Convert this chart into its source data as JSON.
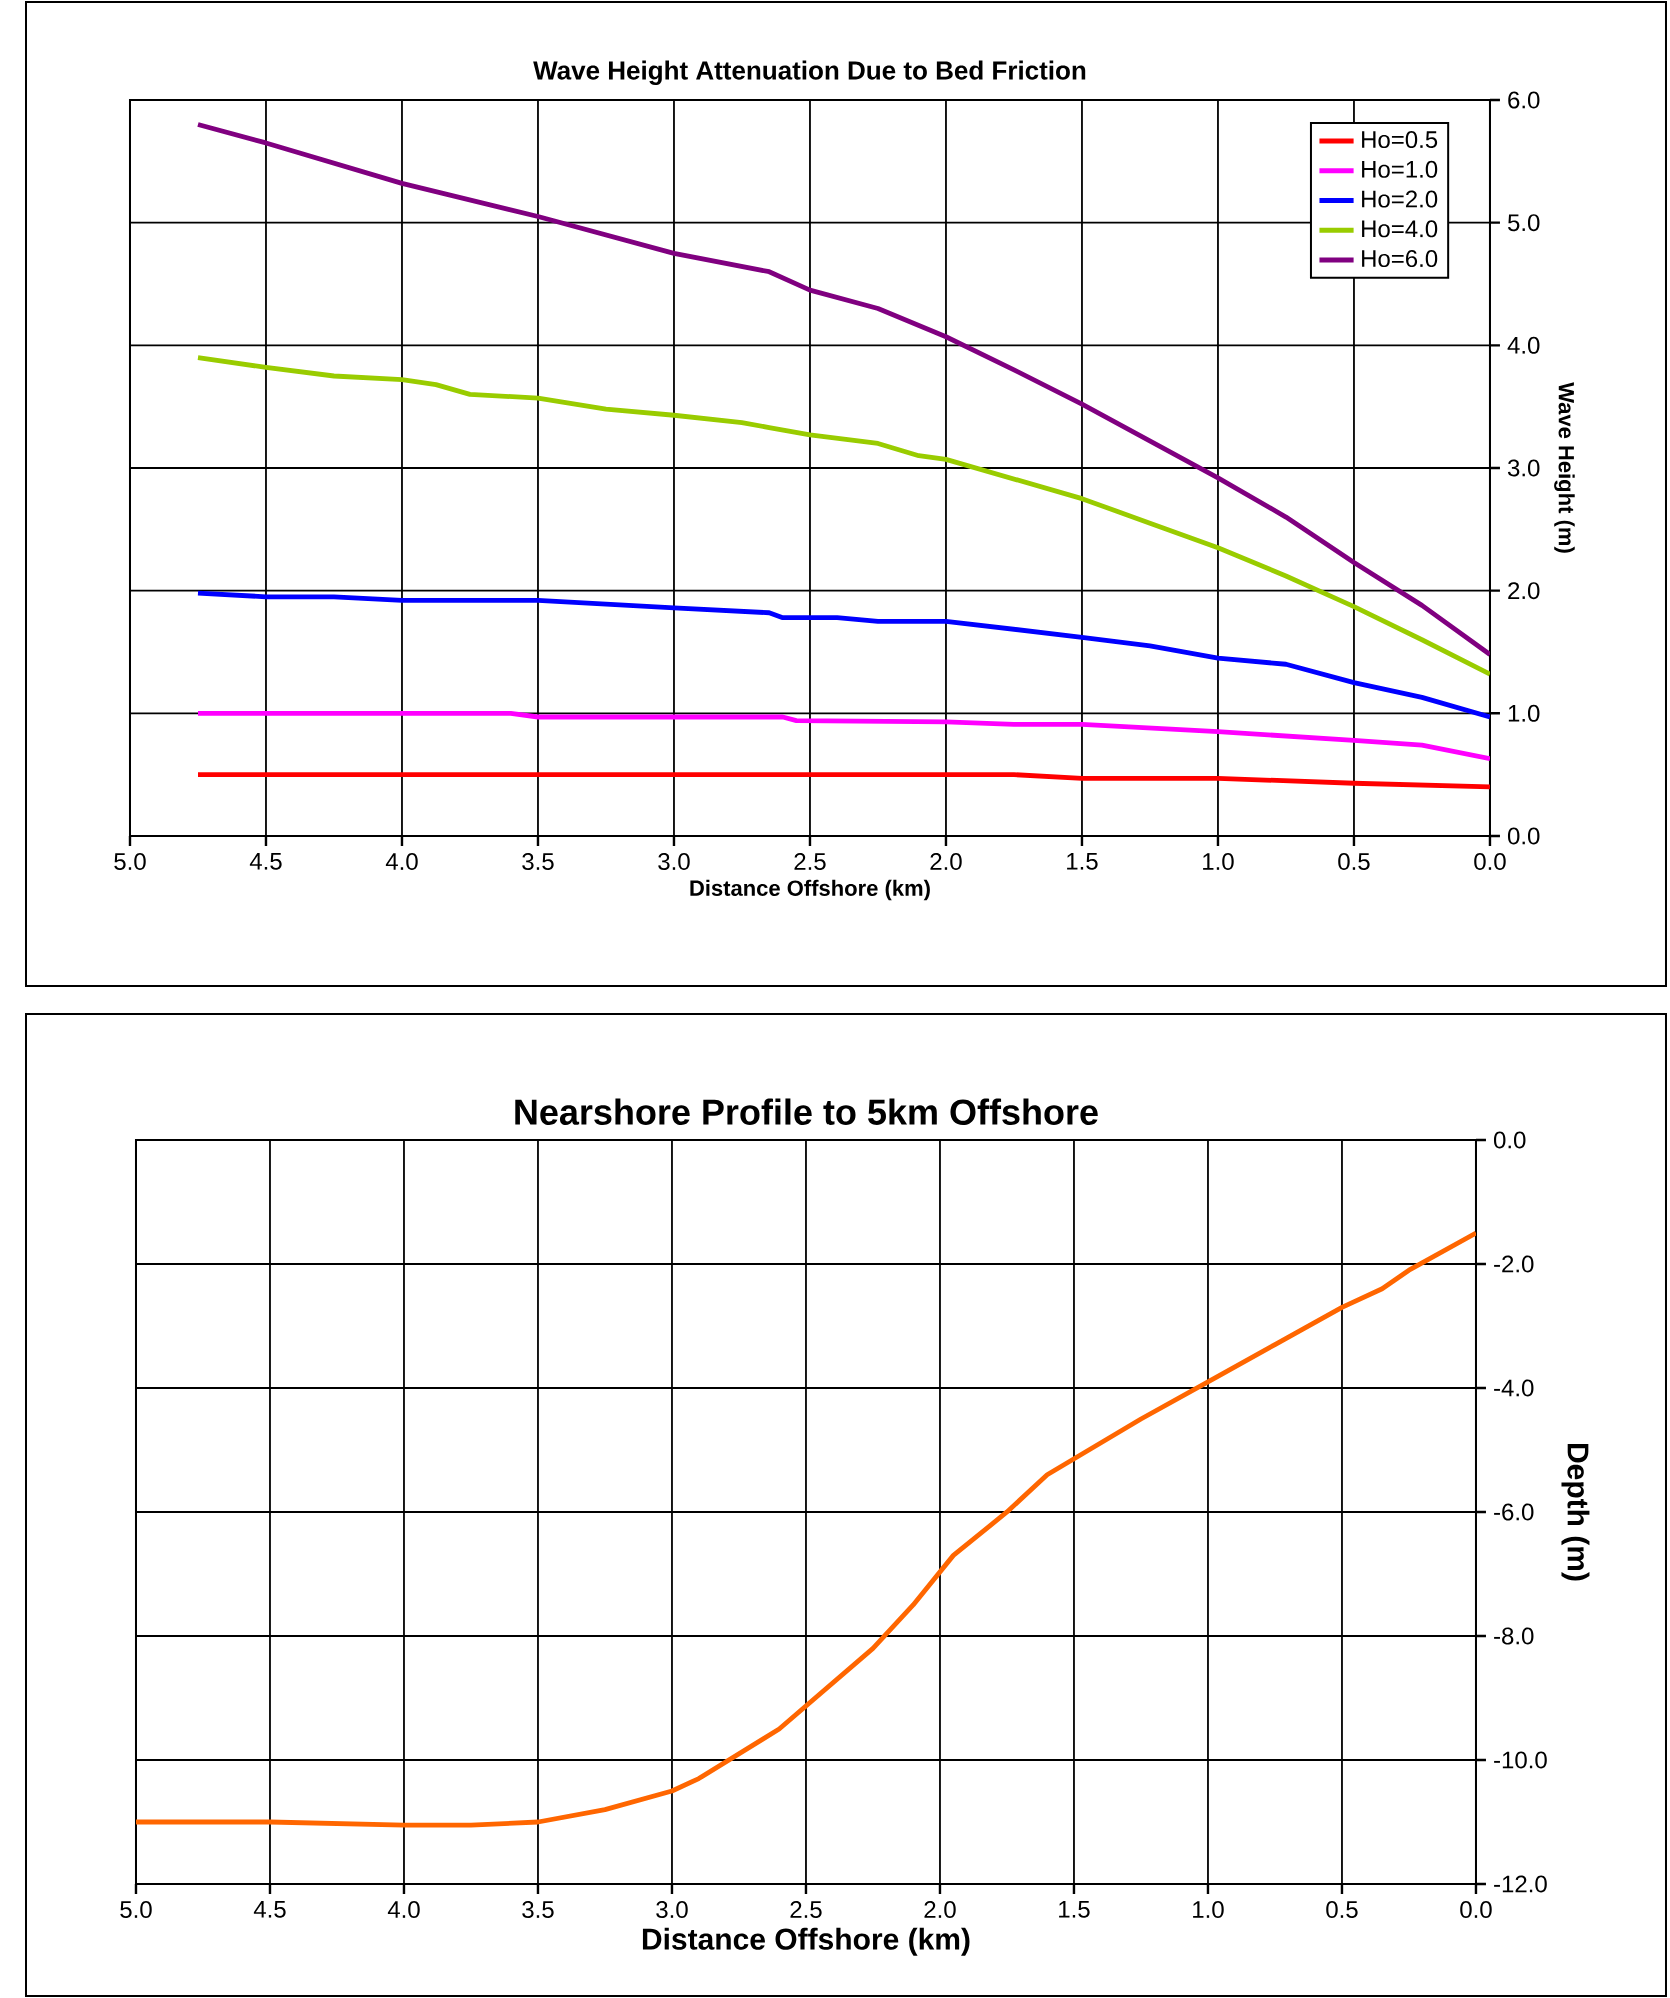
{
  "chart_data": [
    {
      "type": "line",
      "title": "Wave Height Attenuation Due to Bed Friction",
      "xlabel": "Distance Offshore (km)",
      "ylabel": "Wave Height (m)",
      "xlim": [
        5,
        0
      ],
      "ylim": [
        0,
        6
      ],
      "xticks": [
        {
          "value": 5,
          "label": "5.0"
        },
        {
          "value": 4.5,
          "label": "4.5"
        },
        {
          "value": 4,
          "label": "4.0"
        },
        {
          "value": 3.5,
          "label": "3.5"
        },
        {
          "value": 3,
          "label": "3.0"
        },
        {
          "value": 2.5,
          "label": "2.5"
        },
        {
          "value": 2,
          "label": "2.0"
        },
        {
          "value": 1.5,
          "label": "1.5"
        },
        {
          "value": 1,
          "label": "1.0"
        },
        {
          "value": 0.5,
          "label": "0.5"
        },
        {
          "value": 0,
          "label": "0.0"
        }
      ],
      "yticks": [
        {
          "value": 0,
          "label": "0.0"
        },
        {
          "value": 1,
          "label": "1.0"
        },
        {
          "value": 2,
          "label": "2.0"
        },
        {
          "value": 3,
          "label": "3.0"
        },
        {
          "value": 4,
          "label": "4.0"
        },
        {
          "value": 5,
          "label": "5.0"
        },
        {
          "value": 6,
          "label": "6.0"
        }
      ],
      "grid": true,
      "legend": "top right",
      "series": [
        {
          "name": "Ho=0.5",
          "color": "#ff0000",
          "x": [
            4.75,
            1.75,
            1.5,
            1.0,
            0.5,
            0.0
          ],
          "values": [
            0.5,
            0.5,
            0.47,
            0.47,
            0.43,
            0.4
          ]
        },
        {
          "name": "Ho=1.0",
          "color": "#ff00ff",
          "x": [
            4.75,
            3.6,
            3.5,
            2.6,
            2.55,
            2.0,
            1.75,
            1.5,
            1.0,
            0.5,
            0.25,
            0.0
          ],
          "values": [
            1.0,
            1.0,
            0.97,
            0.97,
            0.94,
            0.93,
            0.91,
            0.91,
            0.85,
            0.78,
            0.74,
            0.63
          ]
        },
        {
          "name": "Ho=2.0",
          "color": "#0000ff",
          "x": [
            4.75,
            4.5,
            4.25,
            4.0,
            3.5,
            3.0,
            2.65,
            2.6,
            2.4,
            2.25,
            2.0,
            1.5,
            1.25,
            1.0,
            0.75,
            0.5,
            0.25,
            0.0
          ],
          "values": [
            1.98,
            1.95,
            1.95,
            1.92,
            1.92,
            1.86,
            1.82,
            1.78,
            1.78,
            1.75,
            1.75,
            1.62,
            1.55,
            1.45,
            1.4,
            1.25,
            1.13,
            0.97
          ]
        },
        {
          "name": "Ho=4.0",
          "color": "#99cc00",
          "x": [
            4.75,
            4.5,
            4.25,
            4.0,
            3.875,
            3.75,
            3.5,
            3.25,
            3.0,
            2.75,
            2.65,
            2.5,
            2.25,
            2.1,
            2.0,
            1.5,
            1.25,
            1.0,
            0.75,
            0.5,
            0.25,
            0.0
          ],
          "values": [
            3.9,
            3.82,
            3.75,
            3.72,
            3.68,
            3.6,
            3.57,
            3.48,
            3.43,
            3.37,
            3.33,
            3.27,
            3.2,
            3.1,
            3.07,
            2.75,
            2.55,
            2.35,
            2.12,
            1.87,
            1.6,
            1.32
          ]
        },
        {
          "name": "Ho=6.0",
          "color": "#800080",
          "x": [
            4.75,
            4.5,
            4.0,
            3.5,
            3.0,
            2.65,
            2.5,
            2.25,
            2.0,
            1.75,
            1.5,
            1.0,
            0.75,
            0.5,
            0.25,
            0.0
          ],
          "values": [
            5.8,
            5.65,
            5.32,
            5.05,
            4.75,
            4.6,
            4.45,
            4.3,
            4.07,
            3.8,
            3.52,
            2.92,
            2.6,
            2.23,
            1.88,
            1.48
          ]
        }
      ]
    },
    {
      "type": "line",
      "title": "Nearshore Profile to 5km Offshore",
      "xlabel": "Distance Offshore (km)",
      "ylabel": "Depth (m)",
      "xlim": [
        5,
        0
      ],
      "ylim": [
        -12,
        0
      ],
      "xticks": [
        {
          "value": 5,
          "label": "5.0"
        },
        {
          "value": 4.5,
          "label": "4.5"
        },
        {
          "value": 4,
          "label": "4.0"
        },
        {
          "value": 3.5,
          "label": "3.5"
        },
        {
          "value": 3,
          "label": "3.0"
        },
        {
          "value": 2.5,
          "label": "2.5"
        },
        {
          "value": 2,
          "label": "2.0"
        },
        {
          "value": 1.5,
          "label": "1.5"
        },
        {
          "value": 1,
          "label": "1.0"
        },
        {
          "value": 0.5,
          "label": "0.5"
        },
        {
          "value": 0,
          "label": "0.0"
        }
      ],
      "yticks": [
        {
          "value": -12,
          "label": "-12.0"
        },
        {
          "value": -10,
          "label": "-10.0"
        },
        {
          "value": -8,
          "label": "-8.0"
        },
        {
          "value": -6,
          "label": "-6.0"
        },
        {
          "value": -4,
          "label": "-4.0"
        },
        {
          "value": -2,
          "label": "-2.0"
        },
        {
          "value": 0,
          "label": "0.0"
        }
      ],
      "grid": true,
      "series": [
        {
          "color": "#ff6600",
          "x": [
            5.0,
            4.5,
            4.0,
            3.75,
            3.5,
            3.25,
            3.0,
            2.9,
            2.6,
            2.25,
            2.1,
            1.95,
            1.75,
            1.6,
            1.25,
            1.0,
            0.75,
            0.5,
            0.35,
            0.25,
            0.0
          ],
          "values": [
            -11.0,
            -11.0,
            -11.05,
            -11.05,
            -11.0,
            -10.8,
            -10.5,
            -10.3,
            -9.5,
            -8.2,
            -7.5,
            -6.7,
            -6.0,
            -5.4,
            -4.5,
            -3.9,
            -3.3,
            -2.7,
            -2.4,
            -2.1,
            -1.5
          ]
        }
      ]
    }
  ]
}
